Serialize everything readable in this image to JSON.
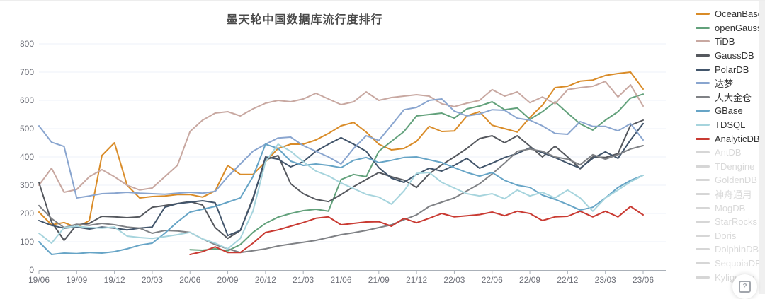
{
  "title": "墨天轮中国数据库流行度排行",
  "help": {
    "glyph": "?"
  },
  "legend": {
    "items": [
      {
        "label": "OceanBase",
        "color": "#d98b27",
        "active": true
      },
      {
        "label": "openGauss",
        "color": "#62a17b",
        "active": true
      },
      {
        "label": "TiDB",
        "color": "#c8a8a1",
        "active": true
      },
      {
        "label": "GaussDB",
        "color": "#55585e",
        "active": true
      },
      {
        "label": "PolarDB",
        "color": "#42556b",
        "active": true
      },
      {
        "label": "达梦",
        "color": "#89a5cf",
        "active": true
      },
      {
        "label": "人大金仓",
        "color": "#7f8185",
        "active": true
      },
      {
        "label": "GBase",
        "color": "#66a4c6",
        "active": true
      },
      {
        "label": "TDSQL",
        "color": "#a6d4dd",
        "active": true
      },
      {
        "label": "AnalyticDB",
        "color": "#c93a32",
        "active": true
      },
      {
        "label": "AntDB",
        "color": "#d6d6d6",
        "active": false
      },
      {
        "label": "TDengine",
        "color": "#d6d6d6",
        "active": false
      },
      {
        "label": "GoldenDB",
        "color": "#d6d6d6",
        "active": false
      },
      {
        "label": "神舟通用",
        "color": "#d6d6d6",
        "active": false
      },
      {
        "label": "MogDB",
        "color": "#d6d6d6",
        "active": false
      },
      {
        "label": "StarRocks",
        "color": "#d6d6d6",
        "active": false
      },
      {
        "label": "Doris",
        "color": "#d6d6d6",
        "active": false
      },
      {
        "label": "DolphinDB",
        "color": "#d6d6d6",
        "active": false
      },
      {
        "label": "SequoiaDB",
        "color": "#d6d6d6",
        "active": false
      },
      {
        "label": "Kyligence",
        "color": "#d6d6d6",
        "active": false
      }
    ]
  },
  "chart_data": {
    "type": "line",
    "title": "墨天轮中国数据库流行度排行",
    "x_unit": "month",
    "x_start": "2019/06",
    "x_end": "2023/06",
    "months_count": 49,
    "x_tick_every": 3,
    "x_tick_labels": [
      "19/06",
      "19/09",
      "19/12",
      "20/03",
      "20/06",
      "20/09",
      "20/12",
      "21/03",
      "21/06",
      "21/09",
      "21/12",
      "22/03",
      "22/06",
      "22/09",
      "22/12",
      "23/03",
      "23/06"
    ],
    "ylim": [
      0,
      800
    ],
    "y_ticks": [
      0,
      100,
      200,
      300,
      400,
      500,
      600,
      700,
      800
    ],
    "grid": true,
    "legend_position": "right",
    "hidden_series": [
      "AntDB",
      "TDengine",
      "GoldenDB",
      "神舟通用",
      "MogDB",
      "StarRocks",
      "Doris",
      "DolphinDB",
      "SequoiaDB",
      "Kyligence"
    ],
    "series": [
      {
        "name": "OceanBase",
        "color": "#d98b27",
        "values": [
          205,
          160,
          168,
          150,
          175,
          405,
          450,
          300,
          255,
          260,
          262,
          267,
          267,
          258,
          280,
          370,
          338,
          338,
          383,
          430,
          445,
          445,
          460,
          483,
          510,
          522,
          488,
          445,
          425,
          430,
          455,
          508,
          490,
          492,
          545,
          560,
          512,
          500,
          488,
          540,
          583,
          645,
          650,
          668,
          672,
          688,
          695,
          700,
          640
        ]
      },
      {
        "name": "openGauss",
        "color": "#62a17b",
        "values": [
          null,
          null,
          null,
          null,
          null,
          null,
          null,
          null,
          null,
          null,
          null,
          null,
          72,
          70,
          75,
          68,
          90,
          133,
          165,
          187,
          200,
          210,
          215,
          208,
          320,
          338,
          330,
          420,
          455,
          490,
          545,
          550,
          555,
          537,
          570,
          580,
          595,
          567,
          573,
          533,
          560,
          595,
          555,
          517,
          495,
          530,
          560,
          608,
          622
        ]
      },
      {
        "name": "TiDB",
        "color": "#c8a8a1",
        "values": [
          300,
          360,
          275,
          285,
          330,
          355,
          330,
          300,
          283,
          290,
          330,
          370,
          490,
          530,
          555,
          560,
          545,
          570,
          590,
          600,
          595,
          605,
          625,
          605,
          585,
          595,
          630,
          600,
          610,
          615,
          620,
          615,
          588,
          578,
          590,
          600,
          638,
          615,
          630,
          592,
          612,
          588,
          638,
          645,
          650,
          667,
          612,
          655,
          580
        ]
      },
      {
        "name": "GaussDB",
        "color": "#55585e",
        "values": [
          310,
          170,
          105,
          160,
          165,
          190,
          188,
          185,
          188,
          222,
          228,
          235,
          242,
          230,
          150,
          112,
          140,
          255,
          390,
          405,
          305,
          270,
          250,
          242,
          267,
          295,
          320,
          345,
          330,
          318,
          292,
          340,
          372,
          400,
          430,
          465,
          475,
          450,
          475,
          438,
          400,
          438,
          400,
          358,
          400,
          398,
          412,
          512,
          530
        ]
      },
      {
        "name": "PolarDB",
        "color": "#42556b",
        "values": [
          175,
          158,
          148,
          152,
          145,
          152,
          148,
          142,
          148,
          152,
          222,
          235,
          240,
          245,
          238,
          122,
          140,
          250,
          400,
          392,
          365,
          383,
          420,
          445,
          468,
          445,
          420,
          362,
          325,
          310,
          338,
          360,
          350,
          370,
          395,
          360,
          378,
          398,
          412,
          432,
          415,
          398,
          378,
          360,
          395,
          418,
          395,
          460,
          518
        ]
      },
      {
        "name": "达梦",
        "color": "#89a5cf",
        "values": [
          510,
          452,
          437,
          255,
          262,
          270,
          272,
          275,
          272,
          270,
          268,
          272,
          275,
          272,
          278,
          330,
          375,
          420,
          445,
          467,
          470,
          440,
          420,
          400,
          375,
          430,
          475,
          458,
          512,
          567,
          575,
          600,
          605,
          562,
          545,
          552,
          567,
          565,
          537,
          530,
          510,
          483,
          480,
          525,
          508,
          508,
          492,
          518,
          460
        ]
      },
      {
        "name": "人大金仓",
        "color": "#7f8185",
        "values": [
          228,
          182,
          150,
          162,
          158,
          165,
          160,
          152,
          148,
          130,
          140,
          138,
          133,
          110,
          90,
          75,
          62,
          68,
          75,
          85,
          92,
          98,
          105,
          115,
          125,
          132,
          140,
          150,
          160,
          178,
          195,
          225,
          240,
          255,
          280,
          305,
          340,
          378,
          420,
          428,
          420,
          400,
          392,
          372,
          408,
          392,
          408,
          428,
          440
        ]
      },
      {
        "name": "GBase",
        "color": "#66a4c6",
        "values": [
          100,
          55,
          60,
          58,
          62,
          60,
          65,
          75,
          88,
          95,
          130,
          170,
          205,
          215,
          225,
          240,
          255,
          330,
          445,
          430,
          385,
          370,
          375,
          370,
          362,
          388,
          398,
          380,
          388,
          398,
          400,
          390,
          380,
          362,
          345,
          332,
          345,
          317,
          300,
          292,
          265,
          250,
          232,
          212,
          222,
          255,
          292,
          317,
          335
        ]
      },
      {
        "name": "TDSQL",
        "color": "#a6d4dd",
        "values": [
          130,
          95,
          150,
          155,
          150,
          148,
          152,
          120,
          115,
          112,
          118,
          125,
          133,
          110,
          95,
          75,
          112,
          208,
          383,
          445,
          420,
          383,
          350,
          333,
          308,
          288,
          268,
          258,
          233,
          280,
          342,
          345,
          310,
          290,
          270,
          262,
          270,
          252,
          283,
          262,
          275,
          255,
          283,
          255,
          208,
          255,
          283,
          312,
          335
        ]
      },
      {
        "name": "AnalyticDB",
        "color": "#c93a32",
        "values": [
          null,
          null,
          null,
          null,
          null,
          null,
          null,
          null,
          null,
          null,
          null,
          null,
          55,
          65,
          82,
          62,
          62,
          95,
          133,
          142,
          155,
          168,
          183,
          188,
          160,
          165,
          170,
          171,
          155,
          183,
          167,
          183,
          200,
          188,
          192,
          196,
          205,
          192,
          208,
          200,
          175,
          188,
          190,
          208,
          188,
          208,
          188,
          225,
          195
        ]
      }
    ]
  }
}
